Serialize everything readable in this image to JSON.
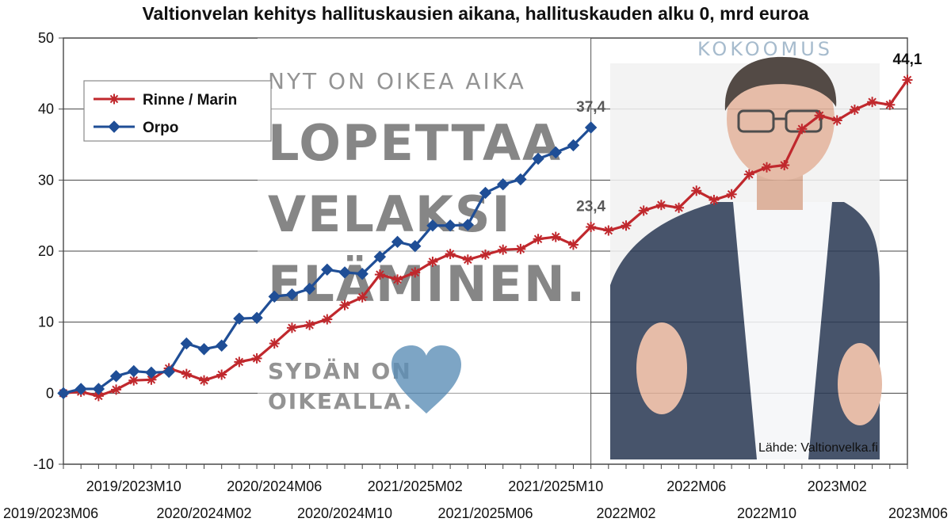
{
  "chart_data": {
    "type": "line",
    "title": "Valtionvelan kehitys hallituskausien aikana, hallituskauden alku 0, mrd euroa",
    "xlabel": "",
    "ylabel": "",
    "ylim": [
      -10,
      50
    ],
    "yticks": [
      -10,
      0,
      10,
      20,
      30,
      40,
      50
    ],
    "grid": true,
    "legend_position": "top-left",
    "x_tick_labels": [
      "2019/2023M06",
      "2019/2023M10",
      "2020/2024M02",
      "2020/2024M06",
      "2020/2024M10",
      "2021/2025M02",
      "2021/2025M06",
      "2021/2025M10",
      "2022M02",
      "2022M06",
      "2022M10",
      "2023M02",
      "2023M06"
    ],
    "series": [
      {
        "name": "Rinne / Marin",
        "color": "#c0282d",
        "marker": "asterisk",
        "values": [
          0,
          0.2,
          -0.4,
          0.5,
          1.8,
          1.9,
          3.5,
          2.7,
          1.8,
          2.6,
          4.4,
          4.9,
          7.0,
          9.2,
          9.6,
          10.4,
          12.4,
          13.5,
          16.7,
          16.0,
          17.0,
          18.5,
          19.6,
          18.8,
          19.5,
          20.2,
          20.3,
          21.7,
          22.0,
          20.9,
          23.4,
          22.9,
          23.6,
          25.7,
          26.5,
          26.1,
          28.5,
          27.2,
          28.0,
          30.8,
          31.8,
          32.1,
          37.2,
          39.1,
          38.4,
          39.9,
          41.0,
          40.6,
          44.1
        ]
      },
      {
        "name": "Orpo",
        "color": "#1f4e96",
        "marker": "diamond",
        "values": [
          0,
          0.6,
          0.6,
          2.4,
          3.1,
          2.9,
          3.0,
          7.0,
          6.2,
          6.7,
          10.5,
          10.6,
          13.6,
          13.9,
          14.7,
          17.4,
          17.0,
          16.8,
          19.2,
          21.3,
          20.7,
          23.6,
          23.6,
          23.7,
          28.2,
          29.4,
          30.1,
          33.0,
          33.9,
          34.9,
          37.4
        ]
      }
    ],
    "data_labels": [
      {
        "series": "Orpo",
        "index": 30,
        "text": "37,4",
        "color": "#595959"
      },
      {
        "series": "Rinne / Marin",
        "index": 30,
        "text": "23,4",
        "color": "#595959"
      },
      {
        "series": "Rinne / Marin",
        "index": 48,
        "text": "44,1",
        "color": "#111111"
      }
    ],
    "source": "Lähde: Valtionvelka.fi"
  },
  "overlay": {
    "party": "KOKOOMUS",
    "line1": "NYT ON OIKEA AIKA",
    "big1": "LOPETTAA",
    "big2": "VELAKSI",
    "big3": "ELÄMINEN.",
    "small1": "SYDÄN ON",
    "small2": "OIKEALLA.",
    "heart_color": "#4f84b0"
  }
}
